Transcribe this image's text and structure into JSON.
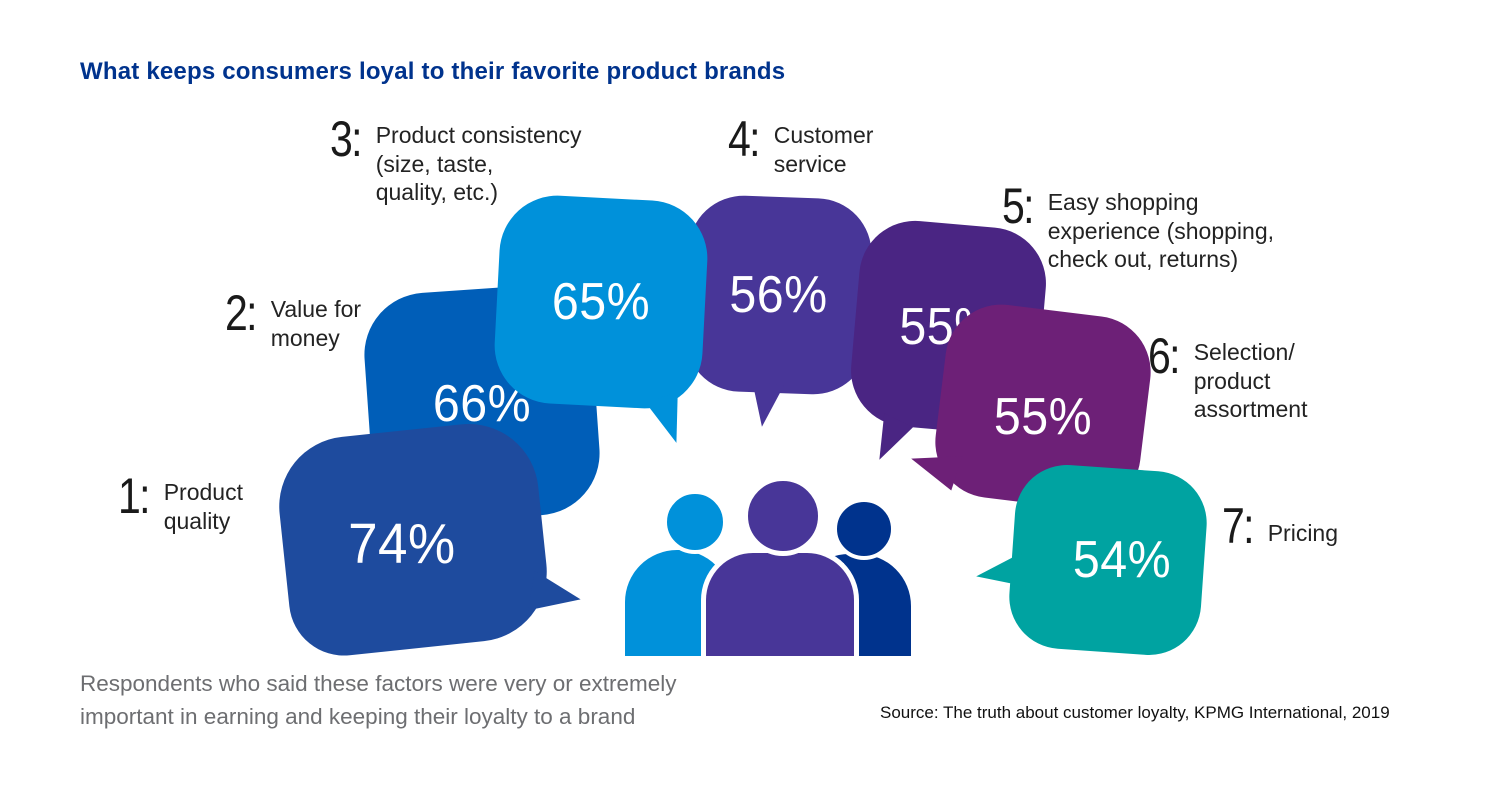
{
  "page": {
    "title": "What keeps consumers loyal to their favorite product brands",
    "footnote": "Respondents who said these factors were very or extremely\nimportant in earning and keeping their loyalty to a brand",
    "source": "Source: The truth about customer loyalty, KPMG International, 2019"
  },
  "bubbles": [
    {
      "rank": "1:",
      "label": "Product\nquality",
      "value": "74%",
      "color": "#1E4B9E"
    },
    {
      "rank": "2:",
      "label": "Value for\nmoney",
      "value": "66%",
      "color": "#005EB8"
    },
    {
      "rank": "3:",
      "label": "Product consistency\n(size, taste,\nquality, etc.)",
      "value": "65%",
      "color": "#0091DA"
    },
    {
      "rank": "4:",
      "label": "Customer\nservice",
      "value": "56%",
      "color": "#483698"
    },
    {
      "rank": "5:",
      "label": "Easy shopping\nexperience (shopping,\ncheck out, returns)",
      "value": "55%",
      "color": "#4A2583"
    },
    {
      "rank": "6:",
      "label": "Selection/\nproduct\nassortment",
      "value": "55%",
      "color": "#6D2077"
    },
    {
      "rank": "7:",
      "label": "Pricing",
      "value": "54%",
      "color": "#00A3A1"
    }
  ],
  "people": [
    {
      "name": "person-left",
      "color": "#0091DA"
    },
    {
      "name": "person-middle",
      "color": "#483698"
    },
    {
      "name": "person-right",
      "color": "#00338D"
    }
  ],
  "chart_data": {
    "type": "bar",
    "title": "What keeps consumers loyal to their favorite product brands",
    "categories": [
      "Product quality",
      "Value for money",
      "Product consistency (size, taste, quality, etc.)",
      "Customer service",
      "Easy shopping experience (shopping, check out, returns)",
      "Selection/product assortment",
      "Pricing"
    ],
    "values": [
      74,
      66,
      65,
      56,
      55,
      55,
      54
    ],
    "unit": "%",
    "value_labels": [
      "74%",
      "66%",
      "65%",
      "56%",
      "55%",
      "55%",
      "54%"
    ],
    "colors": [
      "#1E4B9E",
      "#005EB8",
      "#0091DA",
      "#483698",
      "#4A2583",
      "#6D2077",
      "#00A3A1"
    ],
    "layout": "ranked speech bubbles arranged in an arc around a group of three people, value labels inside bubbles, legend off, axes off",
    "note": "Respondents who said these factors were very or extremely important in earning and keeping their loyalty to a brand",
    "source": "Source: The truth about customer loyalty, KPMG International, 2019"
  }
}
